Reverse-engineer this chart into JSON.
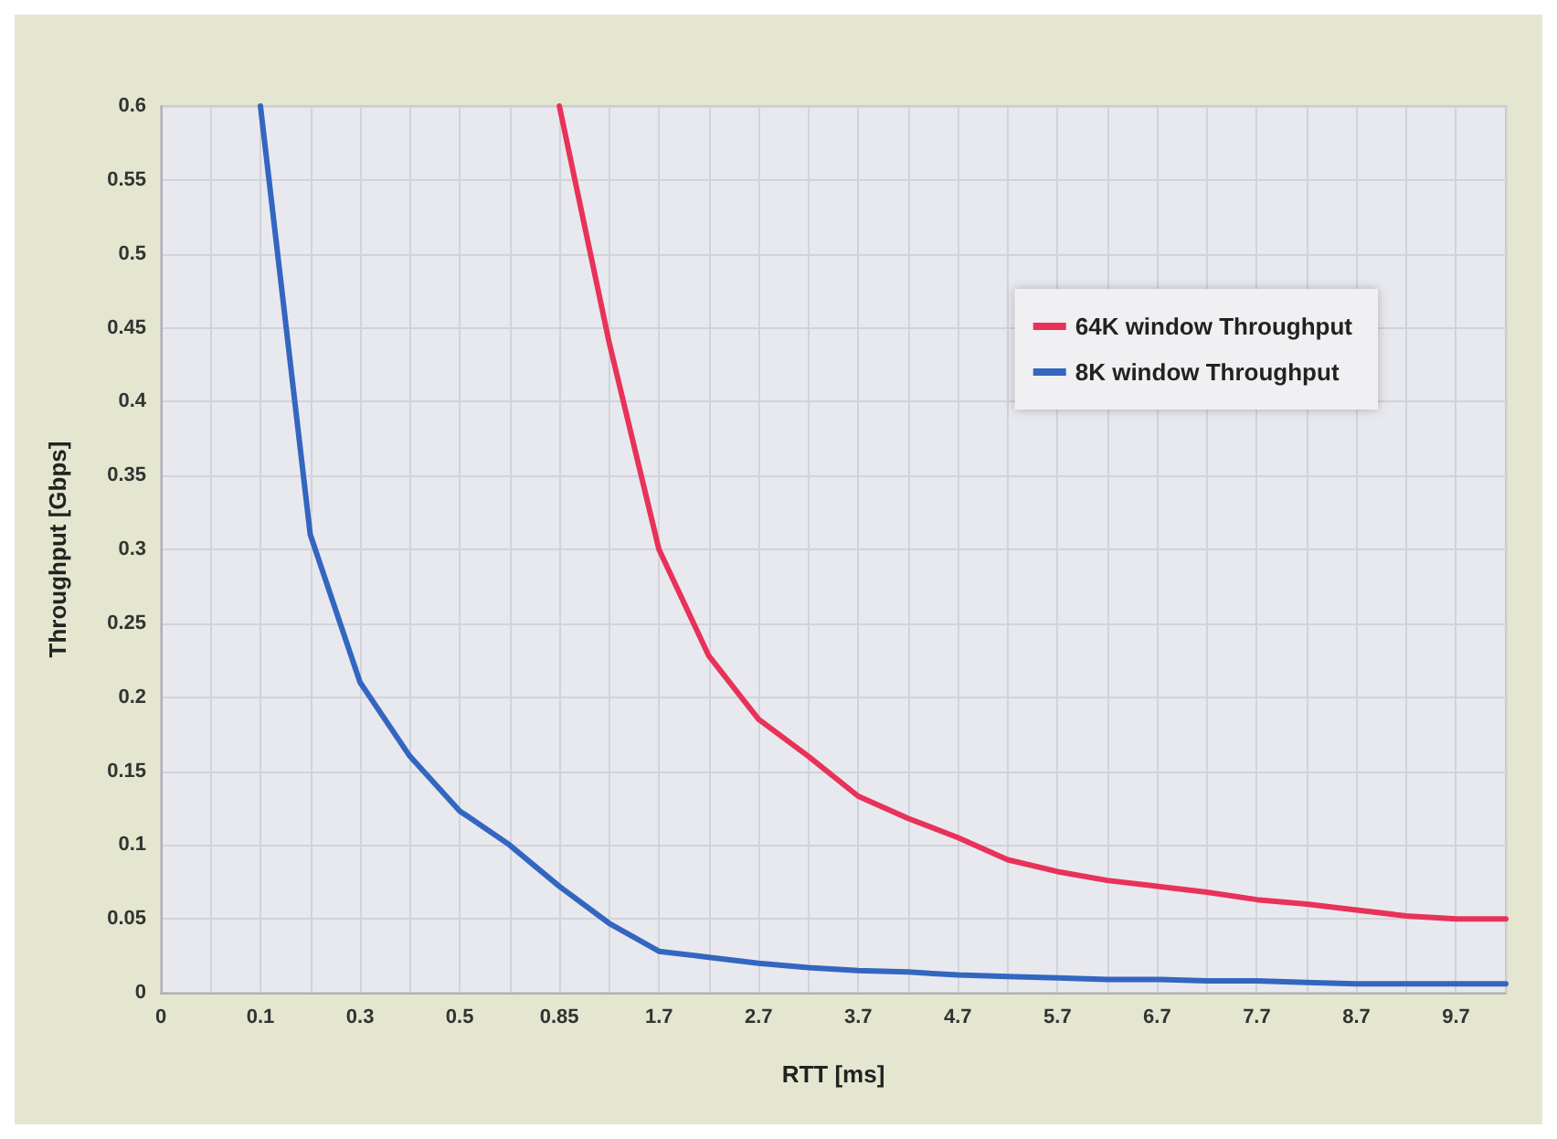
{
  "chart_data": {
    "type": "line",
    "xlabel": "RTT [ms]",
    "ylabel": "Throughput [Gbps]",
    "categories": [
      "0",
      null,
      "0.1",
      null,
      "0.3",
      null,
      "0.5",
      null,
      "0.85",
      null,
      "1.7",
      null,
      "2.7",
      null,
      "3.7",
      null,
      "4.7",
      null,
      "5.7",
      null,
      "6.7",
      null,
      "7.7",
      null,
      "8.7",
      null,
      "9.7",
      null
    ],
    "series": [
      {
        "name": "64K window Throughput",
        "color": "#e8325a",
        "values": [
          null,
          null,
          null,
          null,
          null,
          null,
          null,
          null,
          0.6,
          0.44,
          0.3,
          0.228,
          0.185,
          0.16,
          0.133,
          0.118,
          0.105,
          0.09,
          0.082,
          0.076,
          0.072,
          0.068,
          0.063,
          0.06,
          0.056,
          0.052,
          0.05,
          0.05
        ]
      },
      {
        "name": "8K window Throughput",
        "color": "#3366c0",
        "values": [
          null,
          null,
          0.6,
          0.31,
          0.21,
          0.16,
          0.123,
          0.1,
          0.072,
          0.047,
          0.028,
          0.024,
          0.02,
          0.017,
          0.015,
          0.014,
          0.012,
          0.011,
          0.01,
          0.009,
          0.009,
          0.008,
          0.008,
          0.007,
          0.006,
          0.006,
          0.006,
          0.006
        ]
      }
    ],
    "ylim": [
      0,
      0.6
    ],
    "yticks": [
      0,
      0.05,
      0.1,
      0.15,
      0.2,
      0.25,
      0.3,
      0.35,
      0.4,
      0.45,
      0.5,
      0.55,
      0.6
    ],
    "grid": true,
    "legend": "top right",
    "marker": "none",
    "line_style": "solid"
  }
}
